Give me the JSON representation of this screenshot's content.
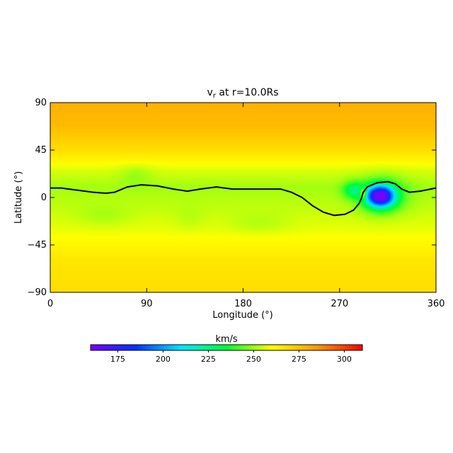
{
  "chart_data": {
    "type": "heatmap",
    "title": "v",
    "title_sub": "r",
    "title_suffix": " at r=10.0Rs",
    "xlabel": "Longitude (°)",
    "ylabel": "Latitude (°)",
    "xlim": [
      0,
      360
    ],
    "ylim": [
      -90,
      90
    ],
    "xticks": [
      0,
      90,
      180,
      270,
      360
    ],
    "yticks": [
      90,
      45,
      0,
      -45,
      -90
    ],
    "xtick_labels": [
      "0",
      "90",
      "180",
      "270",
      "360"
    ],
    "ytick_labels": [
      "90",
      "45",
      "0",
      "−45",
      "−90"
    ],
    "colorbar": {
      "label": "km/s",
      "range": [
        160,
        310
      ],
      "ticks": [
        175,
        200,
        225,
        250,
        275,
        300
      ],
      "tick_labels": [
        "175",
        "200",
        "225",
        "250",
        "275",
        "300"
      ],
      "colors": [
        "#7a00ff",
        "#0033ff",
        "#00e6ff",
        "#00ff30",
        "#ffff00",
        "#ff9900",
        "#ff0000"
      ]
    },
    "background_profile": [
      {
        "lat": -90,
        "v": 268
      },
      {
        "lat": -60,
        "v": 266
      },
      {
        "lat": -30,
        "v": 258
      },
      {
        "lat": -10,
        "v": 254
      },
      {
        "lat": 10,
        "v": 251
      },
      {
        "lat": 25,
        "v": 256
      },
      {
        "lat": 45,
        "v": 268
      },
      {
        "lat": 70,
        "v": 277
      },
      {
        "lat": 90,
        "v": 279
      }
    ],
    "features": [
      {
        "name": "slow-wind-core",
        "lon": 308,
        "lat": 1,
        "dlon": 13,
        "dlat": 10,
        "dv": -82
      },
      {
        "name": "slow-wind-halo",
        "lon": 310,
        "lat": 2,
        "dlon": 22,
        "dlat": 17,
        "dv": -18
      },
      {
        "name": "cyan-patch",
        "lon": 283,
        "lat": 7,
        "dlon": 10,
        "dlat": 8,
        "dv": -22
      },
      {
        "name": "fast-wind-spot",
        "lon": 292,
        "lat": 4,
        "dlon": 3,
        "dlat": 5,
        "dv": 38
      },
      {
        "name": "green-blob-1",
        "lon": 80,
        "lat": 22,
        "dlon": 15,
        "dlat": 10,
        "dv": -5
      },
      {
        "name": "green-blob-2",
        "lon": 50,
        "lat": -18,
        "dlon": 25,
        "dlat": 10,
        "dv": -4
      },
      {
        "name": "green-blob-3",
        "lon": 195,
        "lat": -25,
        "dlon": 30,
        "dlat": 10,
        "dv": -4
      },
      {
        "name": "green-blob-4",
        "lon": 130,
        "lat": -20,
        "dlon": 15,
        "dlat": 12,
        "dv": -3
      }
    ],
    "neutral_line": [
      [
        0,
        9
      ],
      [
        10,
        9
      ],
      [
        25,
        7
      ],
      [
        40,
        5
      ],
      [
        52,
        4
      ],
      [
        60,
        5
      ],
      [
        72,
        10
      ],
      [
        85,
        12
      ],
      [
        100,
        11
      ],
      [
        115,
        8
      ],
      [
        128,
        6
      ],
      [
        140,
        8
      ],
      [
        155,
        10
      ],
      [
        170,
        8
      ],
      [
        185,
        8
      ],
      [
        200,
        8
      ],
      [
        215,
        8
      ],
      [
        225,
        5
      ],
      [
        235,
        0
      ],
      [
        245,
        -8
      ],
      [
        255,
        -14
      ],
      [
        265,
        -17
      ],
      [
        275,
        -16
      ],
      [
        283,
        -12
      ],
      [
        288,
        -6
      ],
      [
        290,
        -2
      ],
      [
        292,
        5
      ],
      [
        296,
        10
      ],
      [
        305,
        14
      ],
      [
        315,
        15
      ],
      [
        322,
        13
      ],
      [
        328,
        8
      ],
      [
        335,
        5
      ],
      [
        345,
        6
      ],
      [
        355,
        8
      ],
      [
        360,
        9
      ]
    ]
  }
}
